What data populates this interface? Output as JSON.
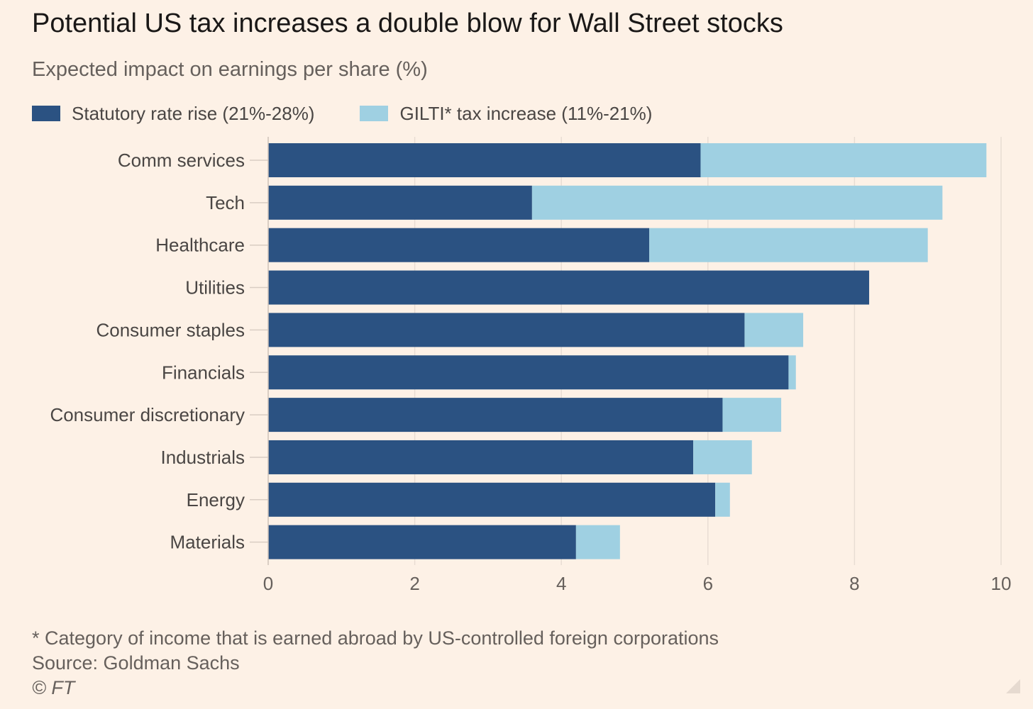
{
  "chart_data": {
    "type": "bar",
    "orientation": "horizontal",
    "stacked": true,
    "title": "Potential US tax increases a double blow for Wall Street stocks",
    "subtitle": "Expected impact on earnings per share (%)",
    "categories": [
      "Comm services",
      "Tech",
      "Healthcare",
      "Utilities",
      "Consumer staples",
      "Financials",
      "Consumer discretionary",
      "Industrials",
      "Energy",
      "Materials"
    ],
    "series": [
      {
        "name": "Statutory rate rise (21%-28%)",
        "color": "#2b5282",
        "values": [
          5.9,
          3.6,
          5.2,
          8.2,
          6.5,
          7.1,
          6.2,
          5.8,
          6.1,
          4.2
        ]
      },
      {
        "name": "GILTI* tax increase (11%-21%)",
        "color": "#9fd0e2",
        "values": [
          3.9,
          5.6,
          3.8,
          0.0,
          0.8,
          0.1,
          0.8,
          0.8,
          0.2,
          0.6
        ]
      }
    ],
    "xlim": [
      0,
      10
    ],
    "xticks": [
      0,
      2,
      4,
      6,
      8,
      10
    ],
    "grid": true,
    "legend_position": "top-left"
  },
  "footer": {
    "note": "* Category of income that is earned abroad by US-controlled foreign corporations",
    "source": "Source: Goldman Sachs",
    "credit": "© FT"
  }
}
